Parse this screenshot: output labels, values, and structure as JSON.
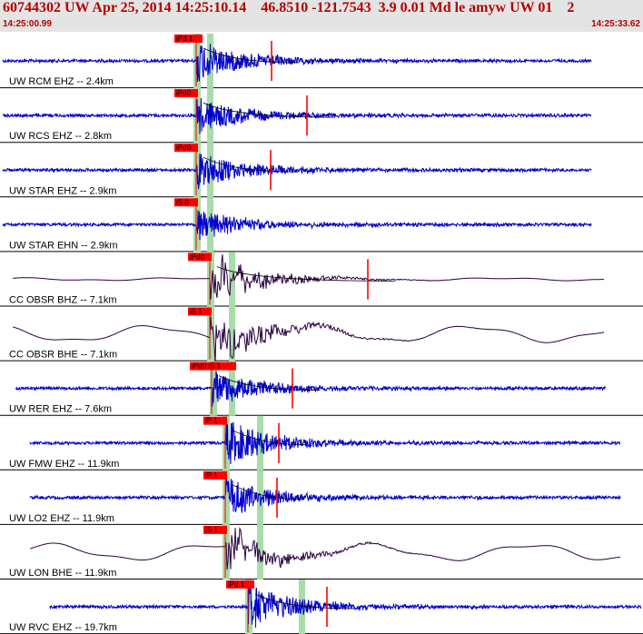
{
  "header": {
    "title": "60744302 UW Apr 25, 2014 14:25:10.14    46.8510 -121.7543  3.9 0.01 Md le amyw UW 01    2",
    "start_time": "14:25:00.99",
    "end_time": "14:25:33.62"
  },
  "colors": {
    "header_text": "#b40000",
    "trace_hf": "#0000cc",
    "trace_lp": "#2a0040",
    "pick_box": "#ff0000",
    "window": "#a8dca8",
    "marker": "#ff0000"
  },
  "traces": [
    {
      "label": "UW RCM EHZ -- 2.4km",
      "pick": "iPd 1",
      "kind": "hf",
      "amp": 22
    },
    {
      "label": "UW RCS EHZ -- 2.8km",
      "pick": "iPd0",
      "kind": "hf",
      "amp": 20
    },
    {
      "label": "UW STAR EHZ -- 2.9km",
      "pick": "iPd0",
      "kind": "hf",
      "amp": 20
    },
    {
      "label": "UW STAR EHN -- 2.9km",
      "pick": "iS 0",
      "kind": "hf",
      "amp": 16
    },
    {
      "label": "CC OBSR BHZ -- 7.1km",
      "pick": "iPd0",
      "kind": "lp",
      "amp": 26
    },
    {
      "label": "CC OBSR BHE -- 7.1km",
      "pick": "iS 1",
      "kind": "lp",
      "amp": 28
    },
    {
      "label": "UW RER EHZ -- 7.6km",
      "pick": "iPd0 iS 1",
      "kind": "hf",
      "amp": 20
    },
    {
      "label": "UW FMW EHZ -- 11.9km",
      "pick": "iP 1",
      "kind": "hf",
      "amp": 24
    },
    {
      "label": "UW LO2 EHZ -- 11.9km",
      "pick": "iP 1",
      "kind": "hf",
      "amp": 22
    },
    {
      "label": "UW LON BHE -- 11.9km",
      "pick": "iS 1",
      "kind": "lp",
      "amp": 22
    },
    {
      "label": "UW RVC EHZ -- 19.7km",
      "pick": "iPd 1",
      "kind": "hf",
      "amp": 24
    }
  ]
}
